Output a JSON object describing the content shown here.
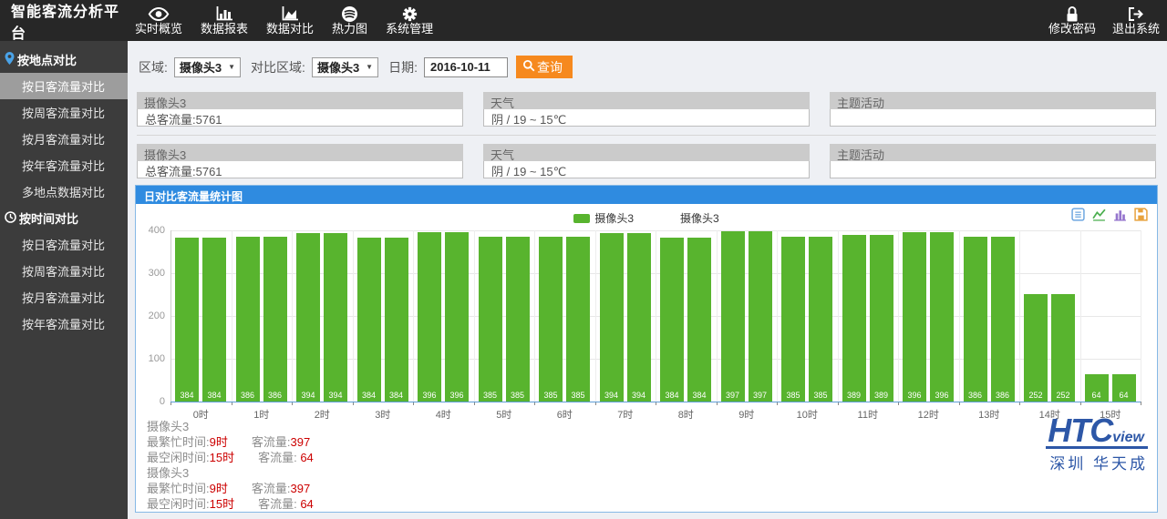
{
  "topbar": {
    "title": "智能客流分析平台",
    "nav": [
      {
        "label": "实时概览",
        "icon": "eye-icon",
        "name": "nav-realtime-overview"
      },
      {
        "label": "数据报表",
        "icon": "report-chart-icon",
        "name": "nav-data-report"
      },
      {
        "label": "数据对比",
        "icon": "area-chart-icon",
        "name": "nav-data-compare"
      },
      {
        "label": "热力图",
        "icon": "heatmap-icon",
        "name": "nav-heatmap"
      },
      {
        "label": "系统管理",
        "icon": "gear-icon",
        "name": "nav-system-admin"
      }
    ],
    "right": [
      {
        "label": "修改密码",
        "icon": "lock-icon",
        "name": "nav-change-password"
      },
      {
        "label": "退出系统",
        "icon": "logout-icon",
        "name": "nav-logout"
      }
    ]
  },
  "sidebar": {
    "sections": [
      {
        "title": "按地点对比",
        "icon": "location-pin-icon",
        "items": [
          {
            "label": "按日客流量对比",
            "active": true
          },
          {
            "label": "按周客流量对比",
            "active": false
          },
          {
            "label": "按月客流量对比",
            "active": false
          },
          {
            "label": "按年客流量对比",
            "active": false
          },
          {
            "label": "多地点数据对比",
            "active": false
          }
        ]
      },
      {
        "title": "按时间对比",
        "icon": "clock-icon",
        "items": [
          {
            "label": "按日客流量对比",
            "active": false
          },
          {
            "label": "按周客流量对比",
            "active": false
          },
          {
            "label": "按月客流量对比",
            "active": false
          },
          {
            "label": "按年客流量对比",
            "active": false
          }
        ]
      }
    ]
  },
  "filters": {
    "region_label": "区域:",
    "region_value": "摄像头3",
    "compare_label": "对比区域:",
    "compare_value": "摄像头3",
    "date_label": "日期:",
    "date_value": "2016-10-11",
    "query_label": "查询"
  },
  "info_panels": [
    [
      {
        "title": "摄像头3",
        "body": "总客流量:5761"
      },
      {
        "title": "天气",
        "body": "阴 / 19 ~ 15℃"
      },
      {
        "title": "主题活动",
        "body": ""
      }
    ],
    [
      {
        "title": "摄像头3",
        "body": "总客流量:5761"
      },
      {
        "title": "天气",
        "body": "阴 / 19 ~ 15℃"
      },
      {
        "title": "主题活动",
        "body": ""
      }
    ]
  ],
  "chart": {
    "panel_title": "日对比客流量统计图",
    "legend": [
      {
        "label": "摄像头3",
        "color": "#58b42e"
      },
      {
        "label": "摄像头3",
        "color": "#ffffff"
      }
    ],
    "toolbox": [
      "dataview-icon",
      "linechart-icon",
      "barchart-icon",
      "save-image-icon"
    ]
  },
  "chart_data": {
    "type": "bar",
    "title": "日对比客流量统计图",
    "categories": [
      "0时",
      "1时",
      "2时",
      "3时",
      "4时",
      "5时",
      "6时",
      "7时",
      "8时",
      "9时",
      "10时",
      "11时",
      "12时",
      "13时",
      "14时",
      "15时"
    ],
    "series": [
      {
        "name": "摄像头3",
        "values": [
          384,
          386,
          394,
          384,
          396,
          385,
          385,
          394,
          384,
          397,
          385,
          389,
          396,
          386,
          252,
          64
        ]
      },
      {
        "name": "摄像头3",
        "values": [
          384,
          386,
          394,
          384,
          396,
          385,
          385,
          394,
          384,
          397,
          385,
          389,
          396,
          386,
          252,
          64
        ]
      }
    ],
    "ylim": [
      0,
      400
    ],
    "yticks": [
      0,
      100,
      200,
      300,
      400
    ],
    "bar_color": "#58b42e",
    "grid": true,
    "legend_position": "top-center"
  },
  "stats": [
    {
      "camera": "摄像头3",
      "busy_label": "最繁忙时间:",
      "busy_value": "9时",
      "flow_label": "客流量:",
      "busy_flow": "397",
      "idle_label": "最空闲时间:",
      "idle_value": "15时",
      "idle_flow": "64"
    },
    {
      "camera": "摄像头3",
      "busy_label": "最繁忙时间:",
      "busy_value": "9时",
      "flow_label": "客流量:",
      "busy_flow": "397",
      "idle_label": "最空闲时间:",
      "idle_value": "15时",
      "idle_flow": "64"
    }
  ],
  "logo": {
    "brand": "HTC",
    "brand_suffix": "view",
    "subtitle": "深圳  华天成"
  }
}
